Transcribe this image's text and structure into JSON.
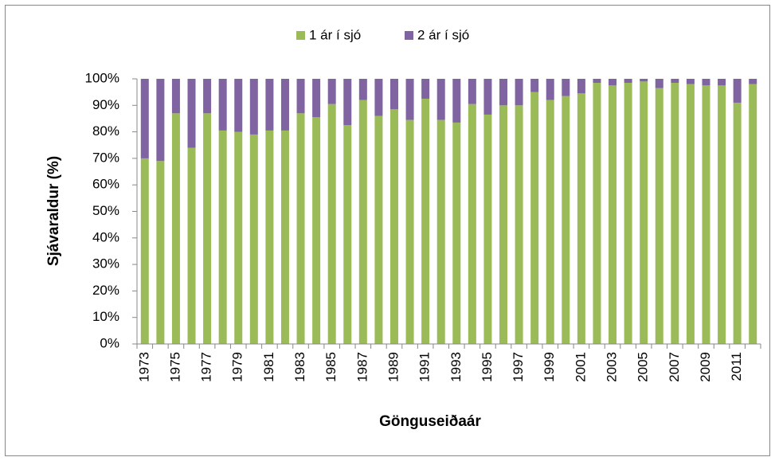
{
  "chart_data": {
    "type": "stacked_bar",
    "x_label": "Gönguseiðaár",
    "y_label": "Sjávaraldur  (%)",
    "categories": [
      "1973",
      null,
      "1975",
      null,
      "1977",
      null,
      "1979",
      null,
      "1981",
      null,
      "1983",
      null,
      "1985",
      null,
      "1987",
      null,
      "1989",
      null,
      "1991",
      null,
      "1993",
      null,
      "1995",
      null,
      "1997",
      null,
      "1999",
      null,
      "2001",
      null,
      "2003",
      null,
      "2005",
      null,
      "2007",
      null,
      "2009",
      null,
      "2011",
      null
    ],
    "series": [
      {
        "name": "1 ár í sjó",
        "color": "#9bbb59",
        "values": [
          70,
          69,
          87,
          74,
          87,
          80.5,
          80,
          79,
          80.5,
          80.5,
          87,
          85.5,
          90.5,
          82.5,
          92,
          86,
          88.5,
          84.5,
          92.5,
          84.5,
          83.5,
          90.5,
          86.5,
          90,
          90,
          95,
          92,
          93.5,
          94.5,
          98.5,
          97.5,
          98.5,
          99,
          96.5,
          98.5,
          98,
          97.5,
          97.5,
          91,
          98
        ]
      },
      {
        "name": "2 ár í sjó",
        "color": "#8064a2",
        "values": [
          30,
          31,
          13,
          26,
          13,
          19.5,
          20,
          21,
          19.5,
          19.5,
          13,
          14.5,
          9.5,
          17.5,
          8,
          14,
          11.5,
          15.5,
          7.5,
          15.5,
          16.5,
          9.5,
          13.5,
          10,
          10,
          5,
          8,
          6.5,
          5.5,
          1.5,
          2.5,
          1.5,
          1,
          3.5,
          1.5,
          2,
          2.5,
          2.5,
          9,
          2
        ]
      }
    ],
    "ylim": [
      0,
      100
    ],
    "yticks": [
      {
        "value": 0,
        "label": "0%"
      },
      {
        "value": 10,
        "label": "10%"
      },
      {
        "value": 20,
        "label": "20%"
      },
      {
        "value": 30,
        "label": "30%"
      },
      {
        "value": 40,
        "label": "40%"
      },
      {
        "value": 50,
        "label": "50%"
      },
      {
        "value": 60,
        "label": "60%"
      },
      {
        "value": 70,
        "label": "70%"
      },
      {
        "value": 80,
        "label": "80%"
      },
      {
        "value": 90,
        "label": "90%"
      },
      {
        "value": 100,
        "label": "100%"
      }
    ],
    "grid": false,
    "legend": "top"
  }
}
